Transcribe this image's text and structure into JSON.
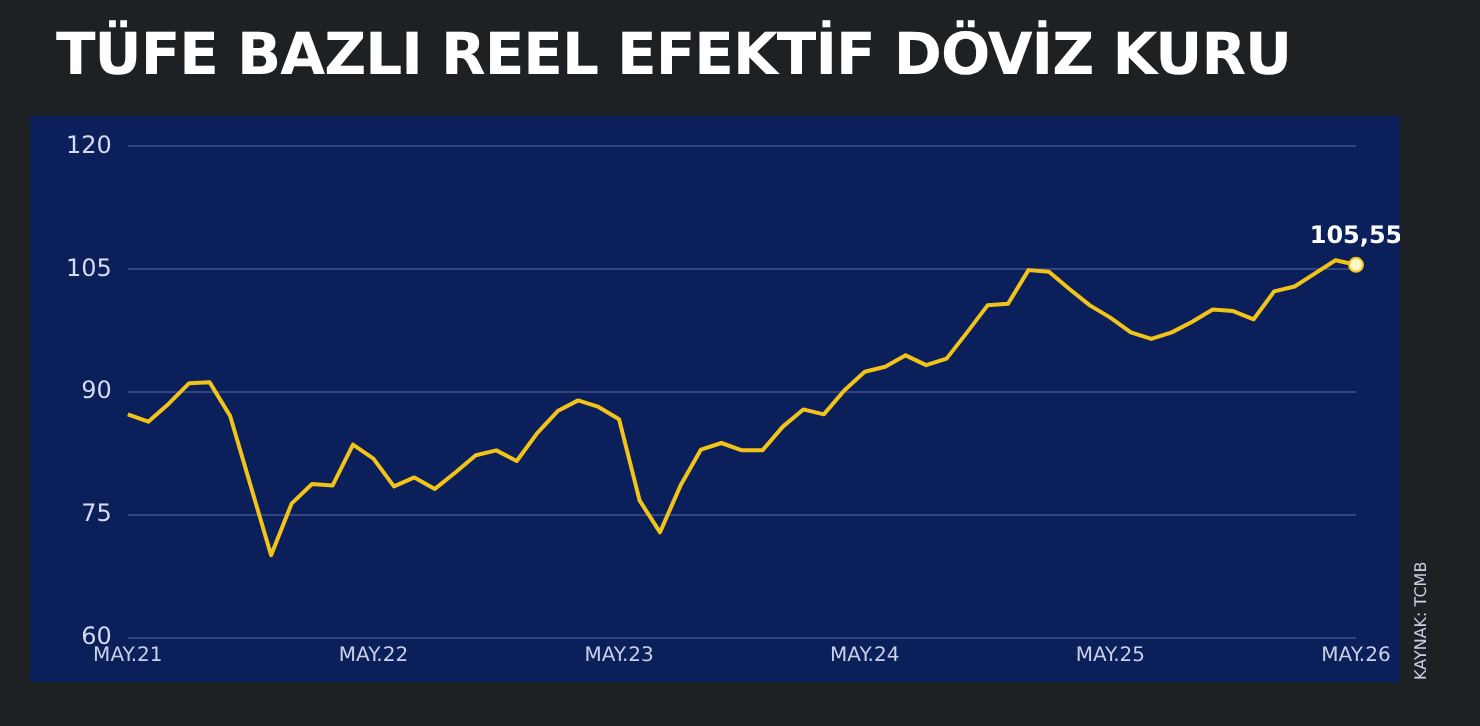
{
  "chart_data": {
    "type": "line",
    "title": "TÜFE BAZLI REEL EFEKTİF DÖVİZ KURU",
    "categories": [
      "MAY.21",
      null,
      null,
      null,
      null,
      null,
      null,
      null,
      null,
      null,
      null,
      null,
      "MAY.22",
      null,
      null,
      null,
      null,
      null,
      null,
      null,
      null,
      null,
      null,
      null,
      "MAY.23",
      null,
      null,
      null,
      null,
      null,
      null,
      null,
      null,
      null,
      null,
      null,
      "MAY.24",
      null,
      null,
      null,
      null,
      null,
      null,
      null,
      null,
      null,
      null,
      null,
      "MAY.25",
      null,
      null,
      null,
      null,
      null,
      null,
      null,
      null,
      null,
      null,
      null,
      "MAY.26"
    ],
    "series": [
      {
        "color": "#f2c318",
        "values": [
          87.3,
          86.4,
          88.6,
          91.1,
          91.2,
          87.1,
          78.6,
          70.1,
          76.4,
          78.8,
          78.6,
          83.6,
          81.9,
          78.5,
          79.6,
          78.2,
          80.2,
          82.3,
          82.9,
          81.6,
          85.0,
          87.7,
          89.0,
          88.2,
          86.7,
          76.8,
          72.9,
          78.6,
          83.0,
          83.8,
          82.9,
          82.9,
          85.8,
          87.9,
          87.3,
          90.2,
          92.5,
          93.1,
          94.5,
          93.3,
          94.1,
          97.3,
          100.6,
          100.8,
          104.9,
          104.7,
          102.6,
          100.6,
          99.1,
          97.3,
          96.5,
          97.3,
          98.6,
          100.1,
          99.9,
          98.9,
          102.3,
          102.9,
          104.5,
          106.1,
          105.55
        ],
        "value_labels": [
          null,
          null,
          null,
          null,
          null,
          null,
          null,
          null,
          null,
          null,
          null,
          null,
          null,
          null,
          null,
          null,
          null,
          null,
          null,
          null,
          null,
          null,
          null,
          null,
          null,
          null,
          null,
          null,
          null,
          null,
          null,
          null,
          null,
          null,
          null,
          null,
          null,
          null,
          null,
          null,
          null,
          null,
          null,
          null,
          null,
          null,
          null,
          null,
          null,
          null,
          null,
          null,
          null,
          null,
          null,
          null,
          null,
          null,
          null,
          null,
          "105,55"
        ]
      }
    ],
    "ylim": [
      60,
      120
    ],
    "yticks": [
      60,
      75,
      90,
      105,
      120
    ],
    "grid": "y",
    "legend": false,
    "annotations": [
      "KAYNAK: TCMB"
    ]
  }
}
